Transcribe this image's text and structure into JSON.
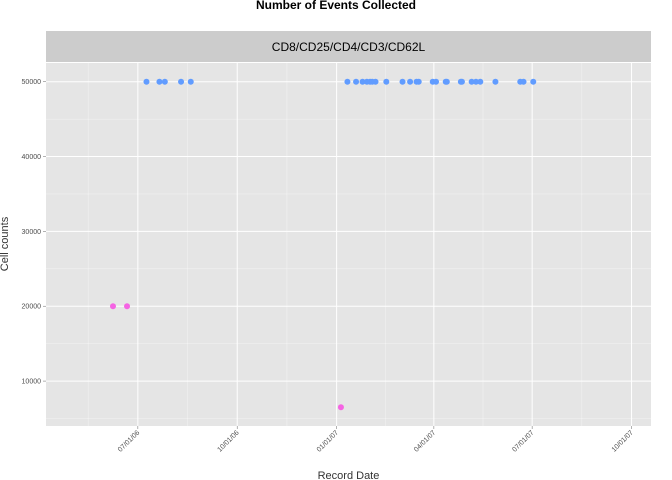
{
  "chart_data": {
    "type": "scatter",
    "title": "Number of Events Collected",
    "facet_label": "CD8/CD25/CD4/CD3/CD62L",
    "xlabel": "Record Date",
    "ylabel": "Cell counts",
    "x_is_date": true,
    "xlim": [
      "2006-04-07",
      "2007-10-19"
    ],
    "ylim": [
      4000,
      52500
    ],
    "x_ticks": [
      {
        "date": "2006-07-01",
        "label": "07/01/06"
      },
      {
        "date": "2006-10-01",
        "label": "10/01/06"
      },
      {
        "date": "2007-01-01",
        "label": "01/01/07"
      },
      {
        "date": "2007-04-01",
        "label": "04/01/07"
      },
      {
        "date": "2007-07-01",
        "label": "07/01/07"
      },
      {
        "date": "2007-10-01",
        "label": "10/01/07"
      }
    ],
    "y_ticks": [
      10000,
      20000,
      30000,
      40000,
      50000
    ],
    "grid": true,
    "legend": "none",
    "colors": {
      "panel_bg": "#e5e5e5",
      "strip_bg": "#cccccc",
      "grid": "#ffffff",
      "series_high": "#619cff",
      "series_low": "#f564e3"
    },
    "series": [
      {
        "color": "#619cff",
        "points": [
          {
            "x": "2006-07-09",
            "y": 50000
          },
          {
            "x": "2006-07-21",
            "y": 50000
          },
          {
            "x": "2006-07-26",
            "y": 50000
          },
          {
            "x": "2006-08-10",
            "y": 50000
          },
          {
            "x": "2006-08-19",
            "y": 50000
          },
          {
            "x": "2007-01-11",
            "y": 50000
          },
          {
            "x": "2007-01-19",
            "y": 50000
          },
          {
            "x": "2007-01-25",
            "y": 50000
          },
          {
            "x": "2007-01-29",
            "y": 50000
          },
          {
            "x": "2007-02-01",
            "y": 50000
          },
          {
            "x": "2007-02-03",
            "y": 50000
          },
          {
            "x": "2007-02-06",
            "y": 50000
          },
          {
            "x": "2007-02-16",
            "y": 50000
          },
          {
            "x": "2007-03-03",
            "y": 50000
          },
          {
            "x": "2007-03-10",
            "y": 50000
          },
          {
            "x": "2007-03-16",
            "y": 50000
          },
          {
            "x": "2007-03-18",
            "y": 50000
          },
          {
            "x": "2007-03-31",
            "y": 50000
          },
          {
            "x": "2007-04-03",
            "y": 50000
          },
          {
            "x": "2007-04-12",
            "y": 50000
          },
          {
            "x": "2007-04-13",
            "y": 50000
          },
          {
            "x": "2007-04-26",
            "y": 50000
          },
          {
            "x": "2007-04-27",
            "y": 50000
          },
          {
            "x": "2007-05-06",
            "y": 50000
          },
          {
            "x": "2007-05-10",
            "y": 50000
          },
          {
            "x": "2007-05-14",
            "y": 50000
          },
          {
            "x": "2007-05-28",
            "y": 50000
          },
          {
            "x": "2007-06-20",
            "y": 50000
          },
          {
            "x": "2007-06-23",
            "y": 50000
          },
          {
            "x": "2007-07-02",
            "y": 50000
          }
        ]
      },
      {
        "color": "#f564e3",
        "points": [
          {
            "x": "2006-06-08",
            "y": 20000
          },
          {
            "x": "2006-06-21",
            "y": 20000
          },
          {
            "x": "2007-01-05",
            "y": 6500
          }
        ]
      }
    ]
  }
}
